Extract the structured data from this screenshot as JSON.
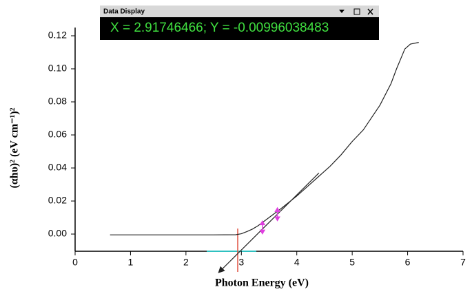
{
  "chart_data": {
    "type": "line",
    "xlabel": "Photon Energy (eV)",
    "ylabel": "(αhυ)² (eV cm⁻¹)²",
    "xlim": [
      0,
      7
    ],
    "xticks": [
      0,
      1,
      2,
      3,
      4,
      5,
      6,
      7
    ],
    "ylim": [
      -0.0104,
      0.125
    ],
    "yticks": [
      {
        "value": 0,
        "label": "0.00"
      },
      0.02,
      0.04,
      0.06,
      0.08,
      {
        "value": 0.1,
        "label": "0.10"
      },
      0.12
    ],
    "series": [
      {
        "color": "#222222",
        "x": [
          0.63,
          1.5,
          2.5,
          2.9,
          3.0,
          3.1,
          3.2,
          3.3,
          3.5,
          3.7,
          4.0,
          4.2,
          4.4,
          4.6,
          4.8,
          5.0,
          5.2,
          5.5,
          5.7,
          5.8,
          5.9,
          5.95,
          6.05,
          6.2
        ],
        "values": [
          -0.0005,
          -0.0005,
          -0.0005,
          -0.0004,
          0.0002,
          0.0015,
          0.003,
          0.005,
          0.01,
          0.015,
          0.023,
          0.029,
          0.035,
          0.041,
          0.048,
          0.056,
          0.063,
          0.078,
          0.091,
          0.1,
          0.108,
          0.112,
          0.115,
          0.116
        ]
      },
      {
        "color": "#222222",
        "x": [
          2.6,
          4.4
        ],
        "values": [
          -0.023,
          0.037
        ]
      }
    ],
    "markers": {
      "color": "#e040e0",
      "x": [
        3.38,
        3.65
      ],
      "values": [
        0.004,
        0.012
      ]
    }
  },
  "data_display": {
    "title": "Data Display",
    "text": "X = 2.91746466; Y = -0.00996038483"
  }
}
